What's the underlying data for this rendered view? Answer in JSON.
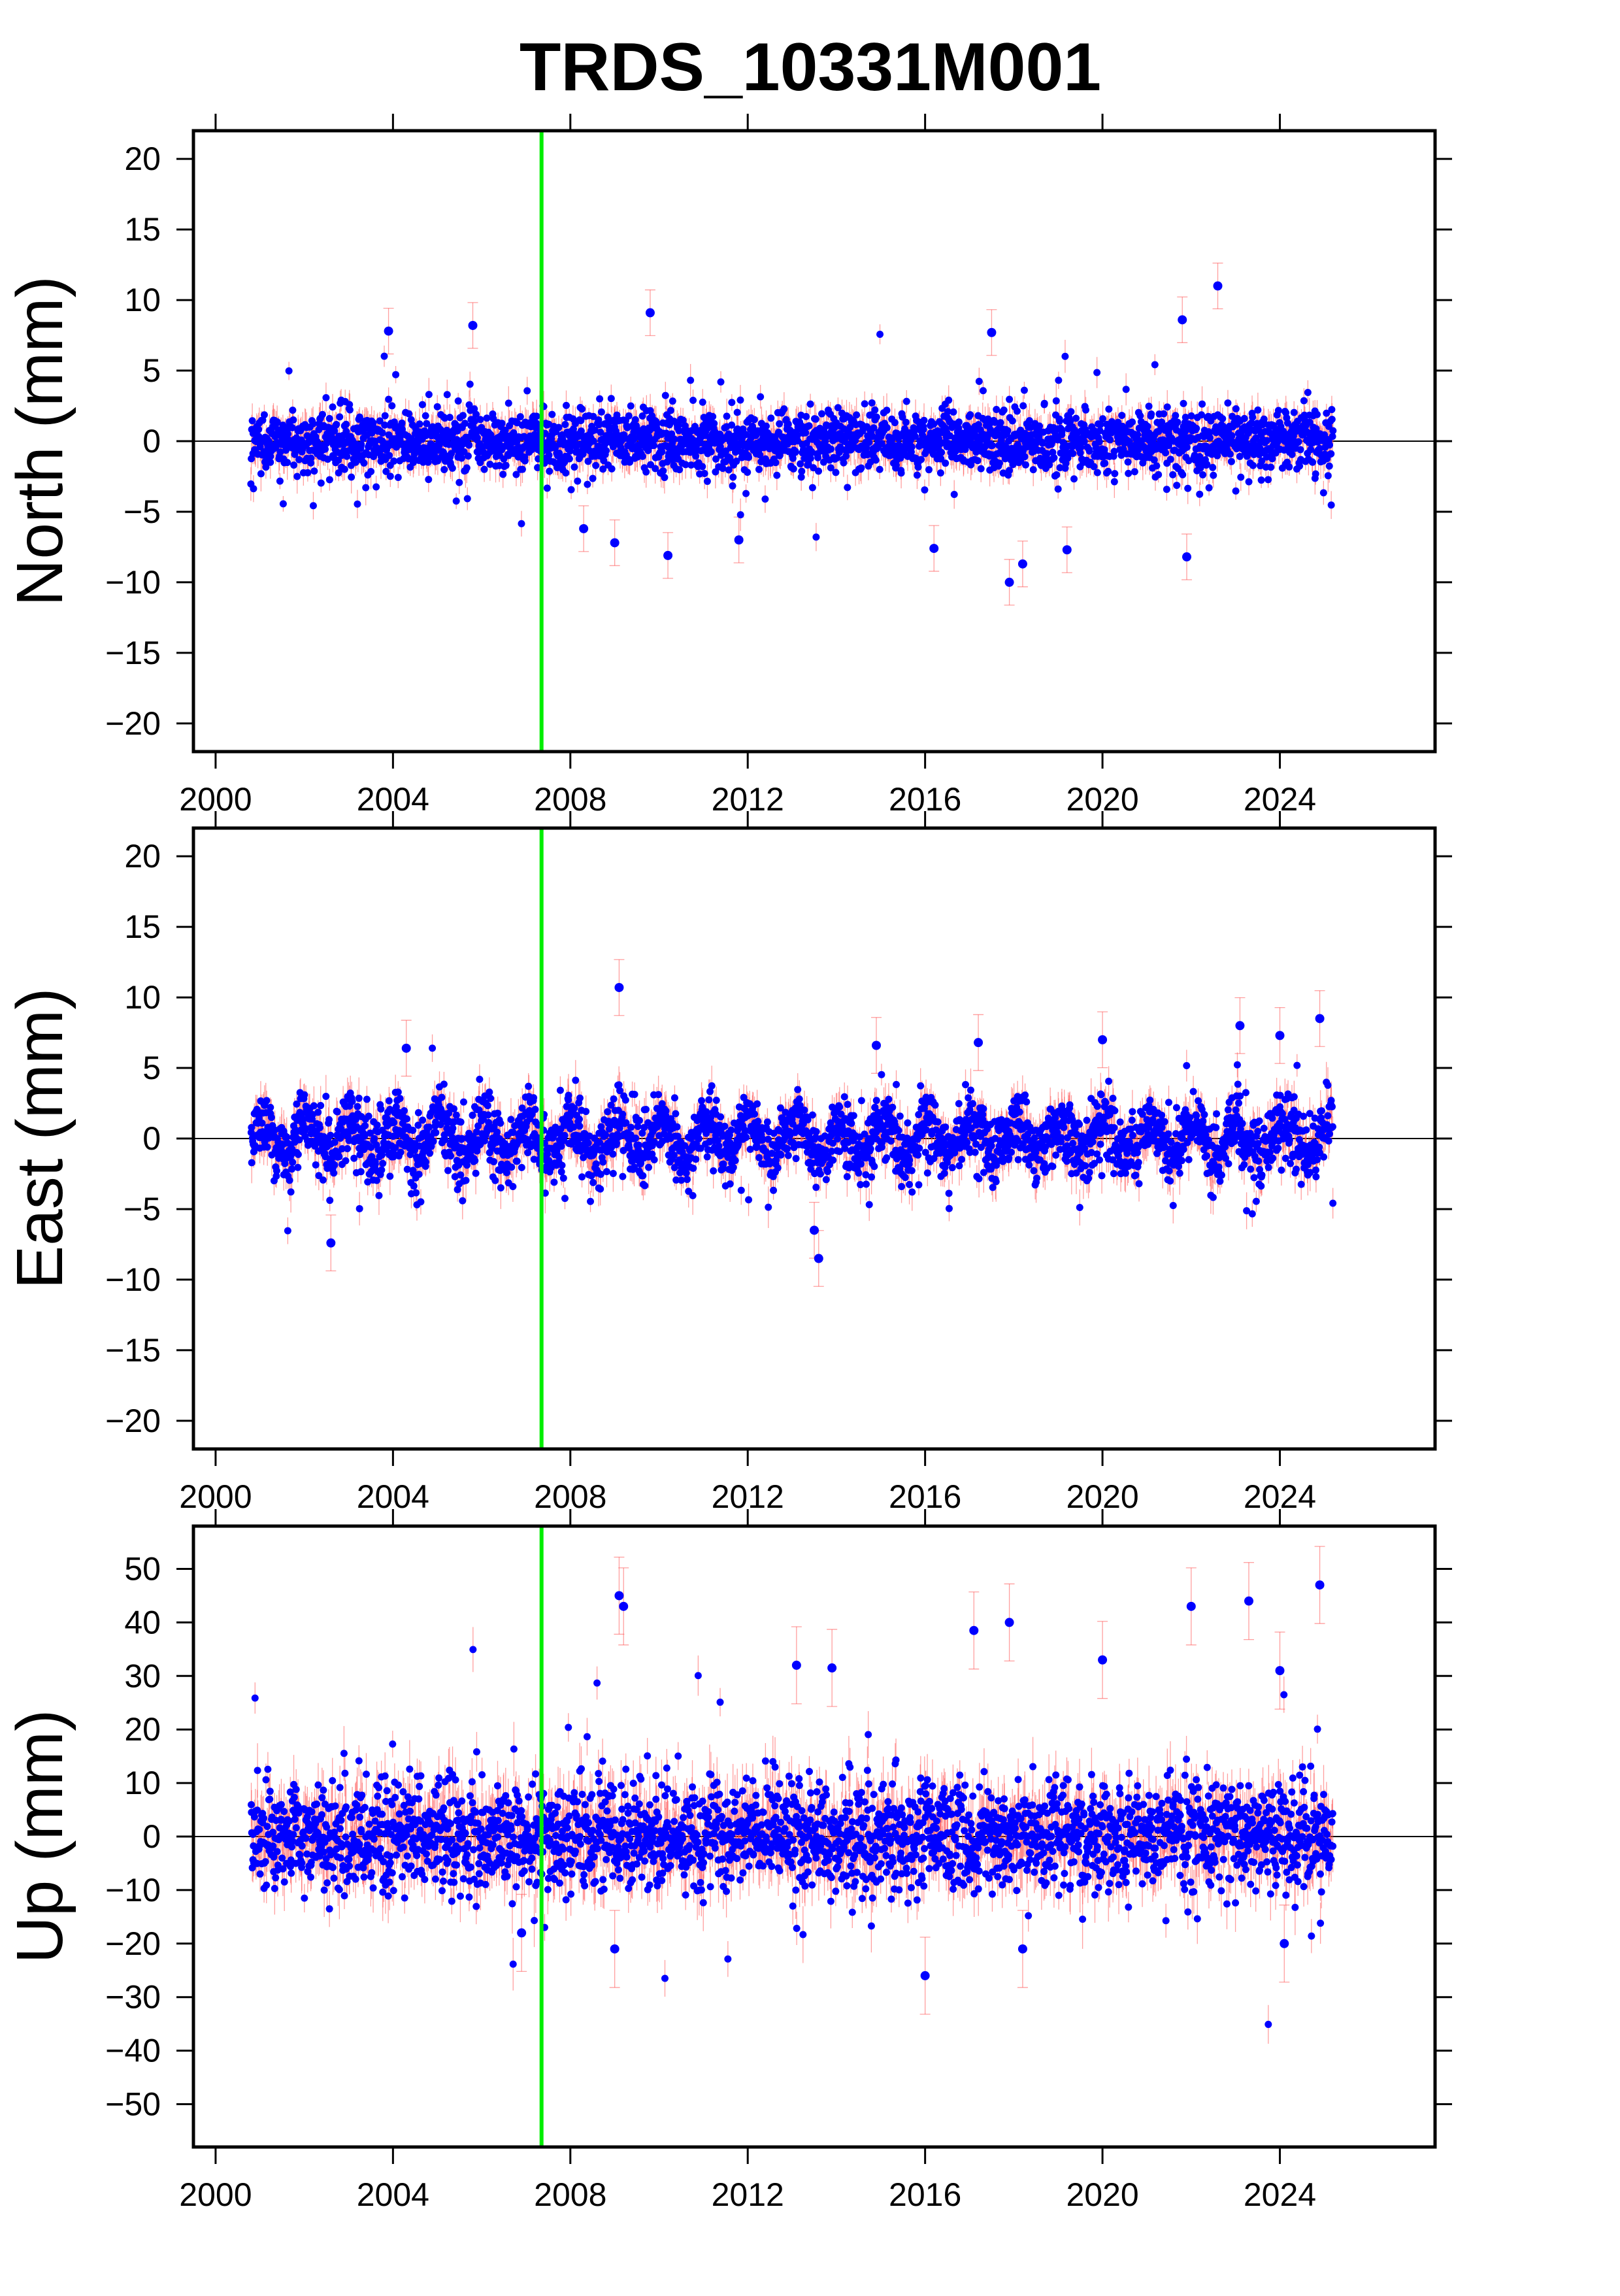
{
  "title": "TRDS_10331M001",
  "colors": {
    "points": "#0000ff",
    "error_bars": "#ff5050",
    "event_line": "#00ee00",
    "zero_line": "#000000",
    "frame": "#000000"
  },
  "chart_data": [
    {
      "type": "scatter",
      "panel": "north",
      "ylabel": "North (mm)",
      "xlim": [
        1999.5,
        2027.5
      ],
      "ylim": [
        -22,
        22
      ],
      "xticks": [
        2000,
        2004,
        2008,
        2012,
        2016,
        2020,
        2024
      ],
      "yticks": [
        20,
        15,
        10,
        5,
        0,
        -5,
        -10,
        -15,
        -20
      ],
      "ytick_labels": [
        "20",
        "15",
        "10",
        "5",
        "0",
        "−5",
        "−10",
        "−15",
        "−20"
      ],
      "xtick_labels": [
        "2000",
        "2004",
        "2008",
        "2012",
        "2016",
        "2020",
        "2024"
      ],
      "series_x_range": [
        2000.8,
        2025.2
      ],
      "scatter_sd": 1.1,
      "error_bar_halfwidth": 0.9,
      "event_line_x": 2007.35,
      "outliers": [
        {
          "x": 2003.9,
          "y": 7.8
        },
        {
          "x": 2005.8,
          "y": 8.2
        },
        {
          "x": 2009.8,
          "y": 9.1
        },
        {
          "x": 2022.6,
          "y": 11.0
        },
        {
          "x": 2021.8,
          "y": 8.6
        },
        {
          "x": 2017.5,
          "y": 7.7
        },
        {
          "x": 2008.3,
          "y": -6.2
        },
        {
          "x": 2009.0,
          "y": -7.2
        },
        {
          "x": 2010.2,
          "y": -8.1
        },
        {
          "x": 2011.8,
          "y": -7.0
        },
        {
          "x": 2016.2,
          "y": -7.6
        },
        {
          "x": 2017.9,
          "y": -10.0
        },
        {
          "x": 2018.2,
          "y": -8.7
        },
        {
          "x": 2019.2,
          "y": -7.7
        },
        {
          "x": 2021.9,
          "y": -8.2
        }
      ]
    },
    {
      "type": "scatter",
      "panel": "east",
      "ylabel": "East (mm)",
      "xlim": [
        1999.5,
        2027.5
      ],
      "ylim": [
        -22,
        22
      ],
      "xticks": [
        2000,
        2004,
        2008,
        2012,
        2016,
        2020,
        2024
      ],
      "yticks": [
        20,
        15,
        10,
        5,
        0,
        -5,
        -10,
        -15,
        -20
      ],
      "ytick_labels": [
        "20",
        "15",
        "10",
        "5",
        "0",
        "−5",
        "−10",
        "−15",
        "−20"
      ],
      "xtick_labels": [
        "2000",
        "2004",
        "2008",
        "2012",
        "2016",
        "2020",
        "2024"
      ],
      "series_x_range": [
        2000.8,
        2025.2
      ],
      "scatter_sd": 1.2,
      "seasonal_amplitude": 1.2,
      "error_bar_halfwidth": 1.1,
      "event_line_x": 2007.35,
      "outliers": [
        {
          "x": 2009.1,
          "y": 10.7
        },
        {
          "x": 2002.6,
          "y": -7.4
        },
        {
          "x": 2013.6,
          "y": -8.5
        },
        {
          "x": 2013.5,
          "y": -6.5
        },
        {
          "x": 2024.9,
          "y": 8.5
        },
        {
          "x": 2023.1,
          "y": 8.0
        },
        {
          "x": 2024.0,
          "y": 7.3
        },
        {
          "x": 2020.0,
          "y": 7.0
        },
        {
          "x": 2004.3,
          "y": 6.4
        },
        {
          "x": 2014.9,
          "y": 6.6
        },
        {
          "x": 2017.2,
          "y": 6.8
        }
      ]
    },
    {
      "type": "scatter",
      "panel": "up",
      "ylabel": "Up (mm)",
      "xlim": [
        1999.5,
        2027.5
      ],
      "ylim": [
        -58,
        58
      ],
      "xticks": [
        2000,
        2004,
        2008,
        2012,
        2016,
        2020,
        2024
      ],
      "yticks": [
        50,
        40,
        30,
        20,
        10,
        0,
        -10,
        -20,
        -30,
        -40,
        -50
      ],
      "ytick_labels": [
        "50",
        "40",
        "30",
        "20",
        "10",
        "0",
        "−10",
        "−20",
        "−30",
        "−40",
        "−50"
      ],
      "xtick_labels": [
        "2000",
        "2004",
        "2008",
        "2012",
        "2016",
        "2020",
        "2024"
      ],
      "series_x_range": [
        2000.8,
        2025.2
      ],
      "scatter_sd": 5.0,
      "error_bar_halfwidth": 4.0,
      "event_line_x": 2007.35,
      "outliers": [
        {
          "x": 2009.1,
          "y": 45.0
        },
        {
          "x": 2009.2,
          "y": 43.0
        },
        {
          "x": 2024.9,
          "y": 47.0
        },
        {
          "x": 2022.0,
          "y": 43.0
        },
        {
          "x": 2023.3,
          "y": 44.0
        },
        {
          "x": 2017.1,
          "y": 38.5
        },
        {
          "x": 2017.9,
          "y": 40.0
        },
        {
          "x": 2013.1,
          "y": 32.0
        },
        {
          "x": 2013.9,
          "y": 31.5
        },
        {
          "x": 2020.0,
          "y": 33.0
        },
        {
          "x": 2024.0,
          "y": 31.0
        },
        {
          "x": 2016.0,
          "y": -26.0
        },
        {
          "x": 2009.0,
          "y": -21.0
        },
        {
          "x": 2006.9,
          "y": -18.0
        },
        {
          "x": 2024.1,
          "y": -20.0
        },
        {
          "x": 2018.2,
          "y": -21.0
        }
      ]
    }
  ]
}
